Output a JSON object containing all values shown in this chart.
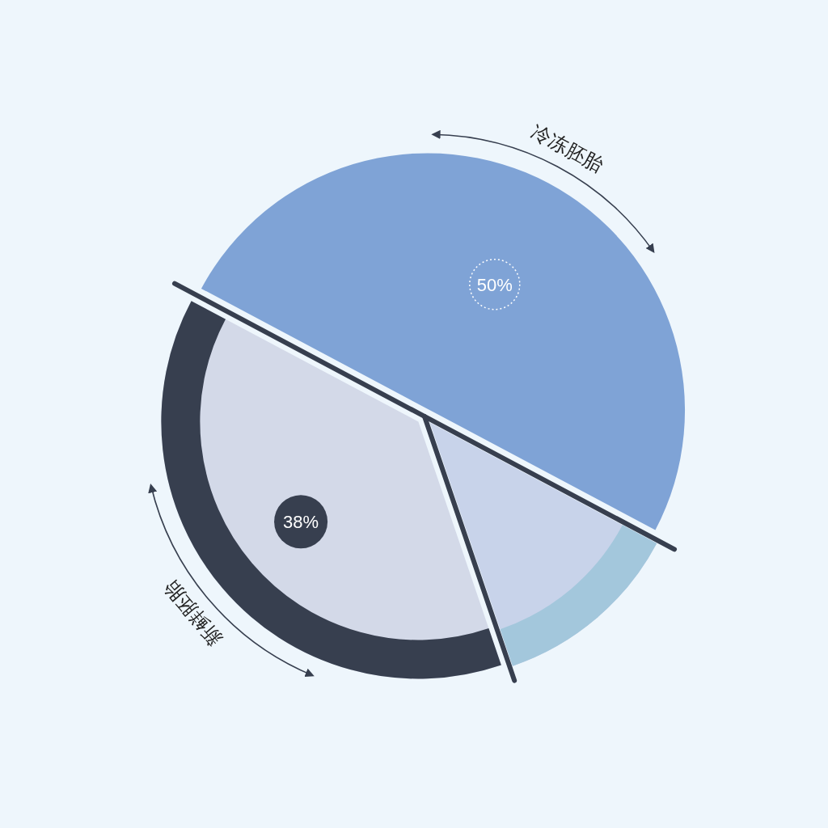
{
  "chart_data": {
    "type": "pie",
    "categories": [
      "冷冻胚胎",
      "新鲜胚胎",
      null
    ],
    "values": [
      50,
      38,
      12
    ],
    "colors": [
      "#7fa3d6",
      "#d3d9e8",
      "#c8d3ea"
    ],
    "value_labels": [
      "50%",
      "38%",
      null
    ]
  }
}
